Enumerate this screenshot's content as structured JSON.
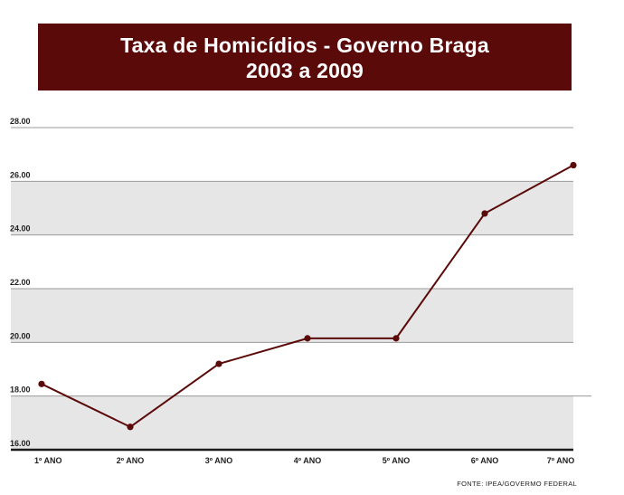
{
  "title": {
    "line1": "Taxa de Homicídios - Governo Braga",
    "line2": "2003 a 2009"
  },
  "source": "FONTE: IPEA/GOVERMO FEDERAL",
  "colors": {
    "title_bg": "#5b0a0a",
    "line": "#5b0a0a",
    "band": "#e6e6e6",
    "grid": "#9a9a9a",
    "baseline": "#1a1a1a"
  },
  "chart_data": {
    "type": "line",
    "title": "Taxa de Homicídios - Governo Braga 2003 a 2009",
    "xlabel": "",
    "ylabel": "",
    "categories": [
      "1º ANO",
      "2º ANO",
      "3º ANO",
      "4º ANO",
      "5º ANO",
      "6º ANO",
      "7º ANO"
    ],
    "series": [
      {
        "values": [
          18.45,
          16.85,
          19.2,
          20.15,
          20.15,
          24.8,
          26.6
        ]
      }
    ],
    "ylim": [
      16,
      28
    ],
    "yticks": [
      16,
      18,
      20,
      22,
      24,
      26,
      28
    ],
    "ytick_labels": [
      "16.00",
      "18.00",
      "20.00",
      "22.00",
      "24.00",
      "26.00",
      "28.00"
    ],
    "grid": true,
    "alternating_bands": true,
    "legend": "none"
  }
}
